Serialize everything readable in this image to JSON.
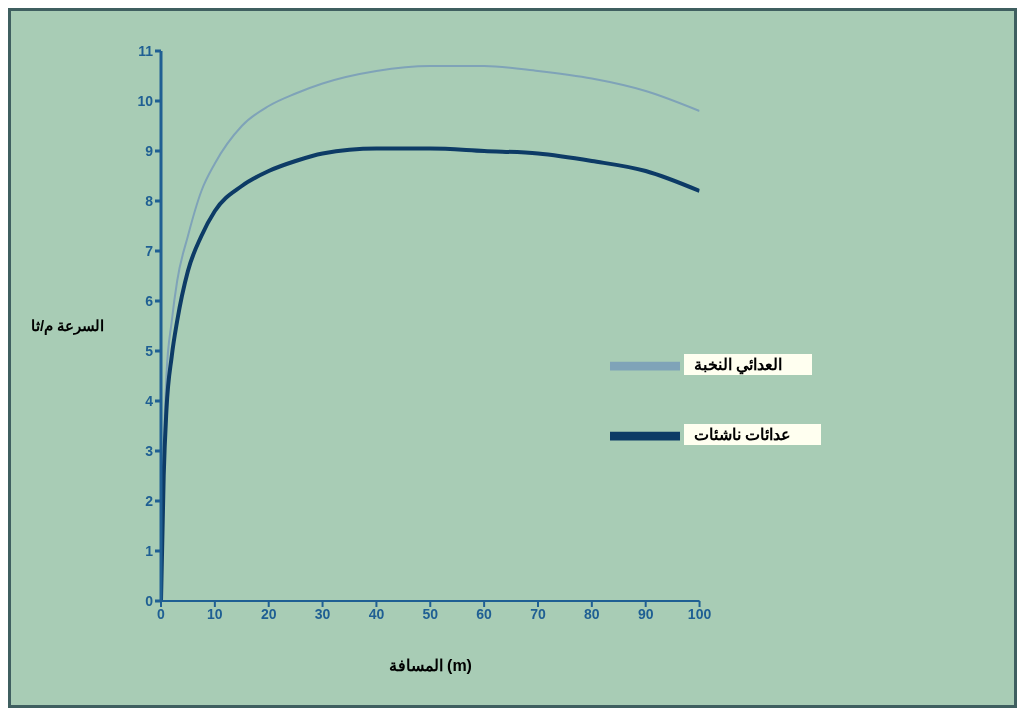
{
  "chart_data": {
    "type": "line",
    "xlabel": "المسافة (m)",
    "ylabel": "السرعة م/ثا",
    "x": [
      0,
      0.5,
      1,
      2,
      3,
      5,
      7.5,
      10,
      15,
      20,
      25,
      30,
      40,
      50,
      60,
      70,
      80,
      90,
      100
    ],
    "series": [
      {
        "name": "العدائي النخبة",
        "color": "#7fa3b8",
        "values": [
          0,
          3,
          4.5,
          5.6,
          6.4,
          7.3,
          8.2,
          8.75,
          9.5,
          9.9,
          10.15,
          10.35,
          10.6,
          10.7,
          10.7,
          10.6,
          10.45,
          10.2,
          9.8
        ]
      },
      {
        "name": "عدائات ناشئات",
        "color": "#0d3b66",
        "values": [
          0,
          2.5,
          3.8,
          4.9,
          5.6,
          6.6,
          7.3,
          7.8,
          8.3,
          8.6,
          8.8,
          8.95,
          9.05,
          9.05,
          9.0,
          8.95,
          8.8,
          8.6,
          8.2
        ]
      }
    ],
    "xlim": [
      0,
      100
    ],
    "xticks": [
      0,
      10,
      20,
      30,
      40,
      50,
      60,
      70,
      80,
      90,
      100
    ],
    "ylim": [
      0,
      11
    ],
    "yticks": [
      0,
      1,
      2,
      3,
      4,
      5,
      6,
      7,
      8,
      9,
      10,
      11
    ],
    "grid": false,
    "legend": "right",
    "marker": "none",
    "line_style": "solid"
  }
}
